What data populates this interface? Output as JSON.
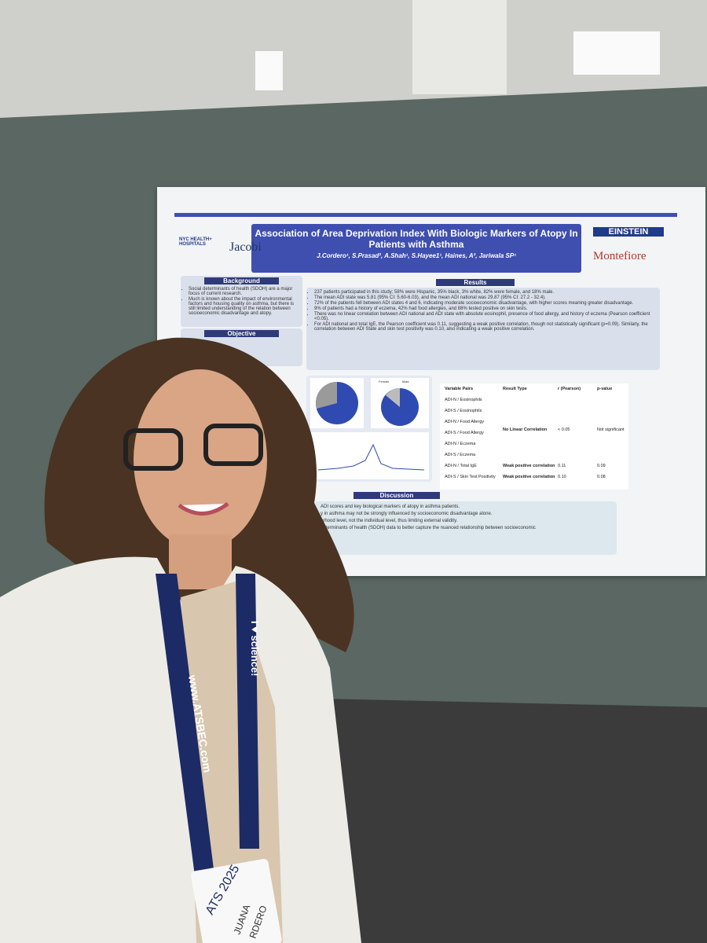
{
  "poster": {
    "title": "Association of Area Deprivation Index With Biologic Markers of Atopy In Patients with Asthma",
    "authors": "J.Cordero¹, S.Prasad², A.Shah¹, S.Hayee1¹, Haines, A², Jariwala SP¹",
    "logos": {
      "left_top": "NYC HEALTH+ HOSPITALS",
      "left_name": "Jacobi",
      "right_top": "EINSTEIN",
      "right_bottom": "Montefiore"
    },
    "background": {
      "heading": "Background",
      "bullets": [
        "Social determinants of health (SDOH) are a major focus of current research.",
        "Much is known about the impact of environmental factors and housing quality on asthma, but there is still limited understanding of the relation between socioeconomic disadvantage and atopy."
      ]
    },
    "objective": {
      "heading": "Objective"
    },
    "results": {
      "heading": "Results",
      "bullets": [
        "237 patients participated in this study; 58% were Hispanic, 35% black, 3% white, 82% were female, and 18% male.",
        "The mean ADI state was 5.81 (95% CI: 5.60-6.03), and the mean ADI national was 29.87 (95% CI: 27.2 - 32.4).",
        "72% of the patients fell between ADI states 4 and 6, indicating moderate socioeconomic disadvantage, with higher scores meaning greater disadvantage.",
        "9% of patients had a history of eczema, 42% had food allergies, and 88% tested positive on skin tests.",
        "There was no linear correlation between ADI national and ADI state with absolute eosinophil, presence of food allergy, and history of eczema (Pearson coefficient <0.05).",
        "For ADI national and total IgE, the Pearson coefficient was 0.11, suggesting a weak positive correlation, though not statistically significant (p=0.09). Similarly, the correlation between ADI State and skin test positivity was 0.10, also indicating a weak positive correlation."
      ]
    },
    "pie_legend": [
      "Female",
      "Male"
    ],
    "table": {
      "header": [
        "Variable Pairs",
        "Result Type",
        "r (Pearson)",
        "p-value"
      ],
      "pairs": [
        "ADI-N / Eosinophils",
        "ADI-S / Eosinophils",
        "ADI-N / Food Allergy",
        "ADI-S / Food Allergy",
        "ADI-N / Eczema",
        "ADI-S / Eczema",
        "ADI-N / Total IgE",
        "ADI-S / Skin Test Positivity"
      ],
      "group": [
        "No Linear Correlation",
        "< 0.05",
        "Not significant"
      ],
      "rows": [
        [
          "Weak positive correlation",
          "0.11",
          "0.09"
        ],
        [
          "Weak positive correlation",
          "0.10",
          "0.08"
        ]
      ]
    },
    "discussion": {
      "heading": "Discussion",
      "lines": [
        "ADI scores and key biological markers of atopy in asthma patients.",
        "y in asthma may not be strongly influenced by socioeconomic disadvantage alone.",
        "orhood level, not the individual level, thus limiting external validity.",
        "determinants of health (SDOH) data to better capture the nuanced relationship between socioeconomic"
      ]
    }
  },
  "lanyard": {
    "site": "www.ATSBEC.com",
    "slogan": "I ♥ science!"
  },
  "badge": {
    "event": "ATS 2025",
    "first_name": "JUANA",
    "last_name": "RDERO"
  }
}
